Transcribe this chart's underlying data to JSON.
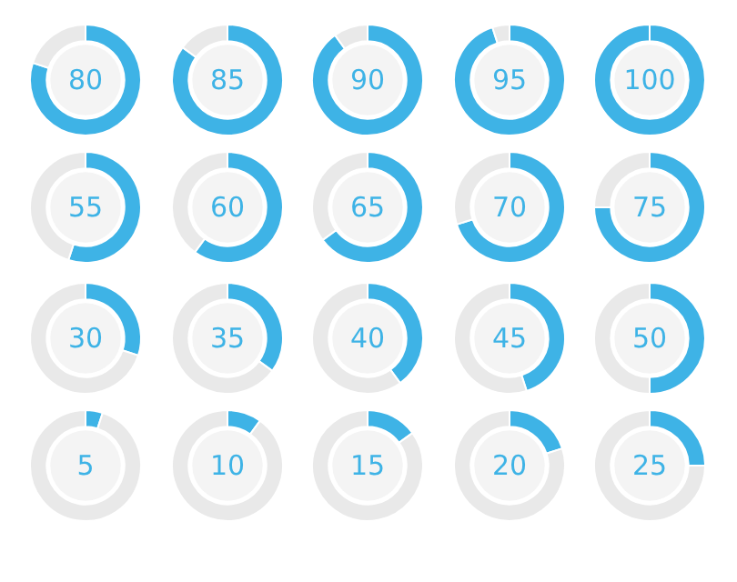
{
  "chart_data": [
    {
      "type": "donut",
      "categories": [
        null,
        null
      ],
      "values": [
        80,
        20
      ],
      "colors": [
        "#3eb3e6",
        "#e9e9e9"
      ],
      "annotations": [
        "80"
      ]
    },
    {
      "type": "donut",
      "categories": [
        null,
        null
      ],
      "values": [
        85,
        15
      ],
      "colors": [
        "#3eb3e6",
        "#e9e9e9"
      ],
      "annotations": [
        "85"
      ]
    },
    {
      "type": "donut",
      "categories": [
        null,
        null
      ],
      "values": [
        90,
        10
      ],
      "colors": [
        "#3eb3e6",
        "#e9e9e9"
      ],
      "annotations": [
        "90"
      ]
    },
    {
      "type": "donut",
      "categories": [
        null,
        null
      ],
      "values": [
        95,
        5
      ],
      "colors": [
        "#3eb3e6",
        "#e9e9e9"
      ],
      "annotations": [
        "95"
      ]
    },
    {
      "type": "donut",
      "categories": [
        null,
        null
      ],
      "values": [
        100,
        0
      ],
      "colors": [
        "#3eb3e6",
        "#e9e9e9"
      ],
      "annotations": [
        "100"
      ]
    },
    {
      "type": "donut",
      "categories": [
        null,
        null
      ],
      "values": [
        55,
        45
      ],
      "colors": [
        "#3eb3e6",
        "#e9e9e9"
      ],
      "annotations": [
        "55"
      ]
    },
    {
      "type": "donut",
      "categories": [
        null,
        null
      ],
      "values": [
        60,
        40
      ],
      "colors": [
        "#3eb3e6",
        "#e9e9e9"
      ],
      "annotations": [
        "60"
      ]
    },
    {
      "type": "donut",
      "categories": [
        null,
        null
      ],
      "values": [
        65,
        35
      ],
      "colors": [
        "#3eb3e6",
        "#e9e9e9"
      ],
      "annotations": [
        "65"
      ]
    },
    {
      "type": "donut",
      "categories": [
        null,
        null
      ],
      "values": [
        70,
        30
      ],
      "colors": [
        "#3eb3e6",
        "#e9e9e9"
      ],
      "annotations": [
        "70"
      ]
    },
    {
      "type": "donut",
      "categories": [
        null,
        null
      ],
      "values": [
        75,
        25
      ],
      "colors": [
        "#3eb3e6",
        "#e9e9e9"
      ],
      "annotations": [
        "75"
      ]
    },
    {
      "type": "donut",
      "categories": [
        null,
        null
      ],
      "values": [
        30,
        70
      ],
      "colors": [
        "#3eb3e6",
        "#e9e9e9"
      ],
      "annotations": [
        "30"
      ]
    },
    {
      "type": "donut",
      "categories": [
        null,
        null
      ],
      "values": [
        35,
        65
      ],
      "colors": [
        "#3eb3e6",
        "#e9e9e9"
      ],
      "annotations": [
        "35"
      ]
    },
    {
      "type": "donut",
      "categories": [
        null,
        null
      ],
      "values": [
        40,
        60
      ],
      "colors": [
        "#3eb3e6",
        "#e9e9e9"
      ],
      "annotations": [
        "40"
      ]
    },
    {
      "type": "donut",
      "categories": [
        null,
        null
      ],
      "values": [
        45,
        55
      ],
      "colors": [
        "#3eb3e6",
        "#e9e9e9"
      ],
      "annotations": [
        "45"
      ]
    },
    {
      "type": "donut",
      "categories": [
        null,
        null
      ],
      "values": [
        50,
        50
      ],
      "colors": [
        "#3eb3e6",
        "#e9e9e9"
      ],
      "annotations": [
        "50"
      ]
    },
    {
      "type": "donut",
      "categories": [
        null,
        null
      ],
      "values": [
        5,
        95
      ],
      "colors": [
        "#3eb3e6",
        "#e9e9e9"
      ],
      "annotations": [
        "5"
      ]
    },
    {
      "type": "donut",
      "categories": [
        null,
        null
      ],
      "values": [
        10,
        90
      ],
      "colors": [
        "#3eb3e6",
        "#e9e9e9"
      ],
      "annotations": [
        "10"
      ]
    },
    {
      "type": "donut",
      "categories": [
        null,
        null
      ],
      "values": [
        15,
        85
      ],
      "colors": [
        "#3eb3e6",
        "#e9e9e9"
      ],
      "annotations": [
        "15"
      ]
    },
    {
      "type": "donut",
      "categories": [
        null,
        null
      ],
      "values": [
        20,
        80
      ],
      "colors": [
        "#3eb3e6",
        "#e9e9e9"
      ],
      "annotations": [
        "20"
      ]
    },
    {
      "type": "donut",
      "categories": [
        null,
        null
      ],
      "values": [
        25,
        75
      ],
      "colors": [
        "#3eb3e6",
        "#e9e9e9"
      ],
      "annotations": [
        "25"
      ]
    }
  ]
}
